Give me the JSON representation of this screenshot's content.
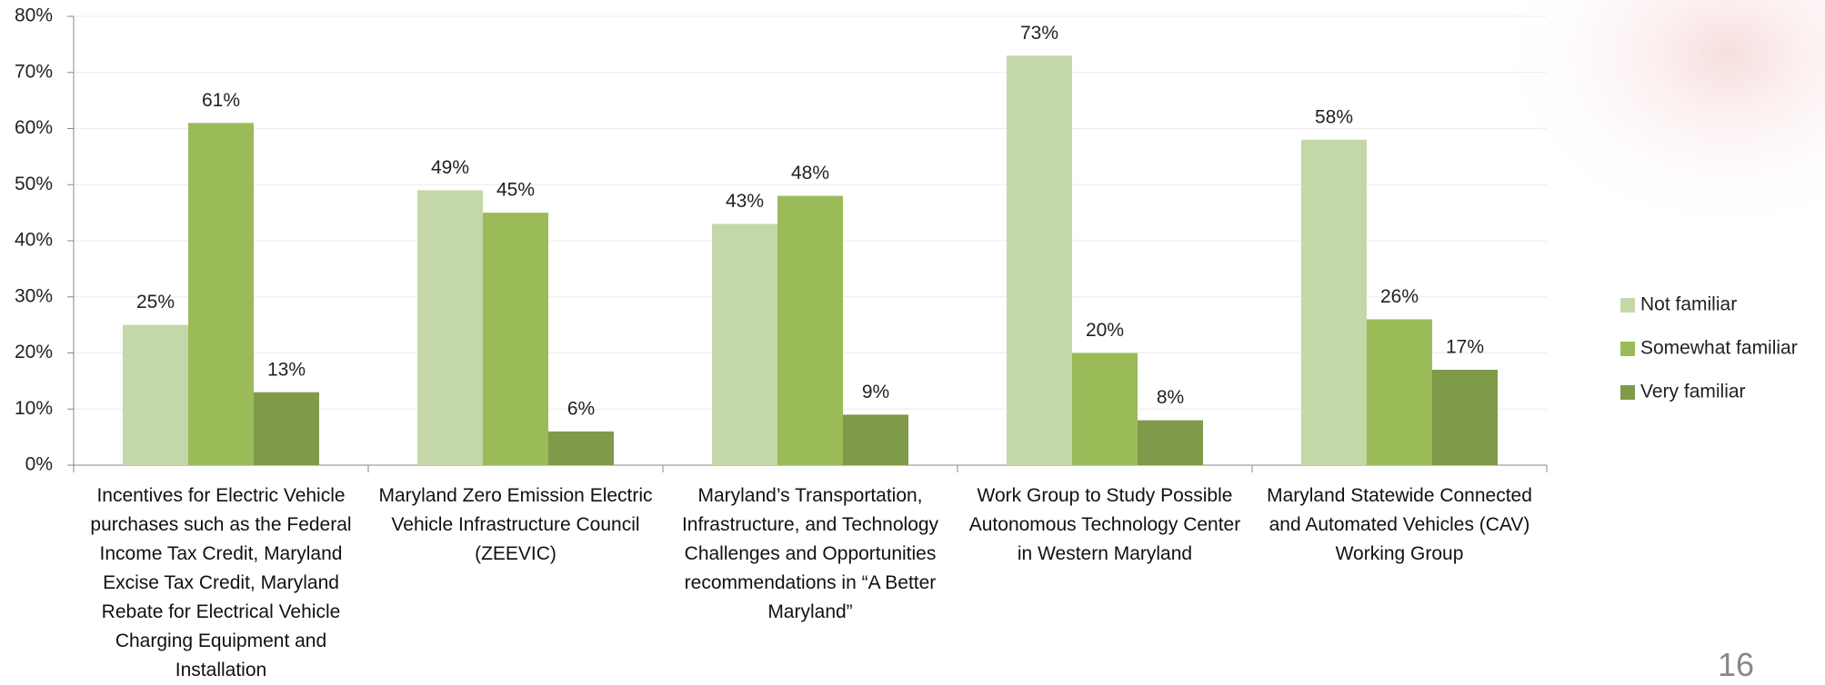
{
  "chart_data": {
    "type": "bar",
    "categories": [
      "Incentives for Electric Vehicle purchases such as the Federal Income Tax Credit, Maryland Excise Tax Credit, Maryland Rebate for Electrical Vehicle Charging Equipment and Installation",
      "Maryland Zero Emission Electric Vehicle Infrastructure Council (ZEEVIC)",
      "Maryland’s Transportation, Infrastructure, and Technology Challenges and Opportunities recommendations in “A Better Maryland”",
      "Work Group to Study Possible Autonomous Technology Center in Western Maryland",
      "Maryland Statewide Connected and Automated Vehicles (CAV) Working Group"
    ],
    "series": [
      {
        "name": "Not familiar",
        "color": "#c4d7a8",
        "values": [
          25,
          49,
          43,
          73,
          58
        ],
        "value_labels": [
          "25%",
          "49%",
          "43%",
          "73%",
          "58%"
        ]
      },
      {
        "name": "Somewhat familiar",
        "color": "#9bbb59",
        "values": [
          61,
          45,
          48,
          20,
          26
        ],
        "value_labels": [
          "61%",
          "45%",
          "48%",
          "20%",
          "26%"
        ]
      },
      {
        "name": "Very familiar",
        "color": "#7f9a48",
        "values": [
          13,
          6,
          9,
          8,
          17
        ],
        "value_labels": [
          "13%",
          "6%",
          "9%",
          "8%",
          "17%"
        ]
      }
    ],
    "ylim": [
      0,
      80
    ],
    "yticks": [
      {
        "value": 0,
        "label": "0%"
      },
      {
        "value": 10,
        "label": "10%"
      },
      {
        "value": 20,
        "label": "20%"
      },
      {
        "value": 30,
        "label": "30%"
      },
      {
        "value": 40,
        "label": "40%"
      },
      {
        "value": 50,
        "label": "50%"
      },
      {
        "value": 60,
        "label": "60%"
      },
      {
        "value": 70,
        "label": "70%"
      },
      {
        "value": 80,
        "label": "80%"
      }
    ],
    "grid": true,
    "legend": "right"
  },
  "page_number": "16"
}
